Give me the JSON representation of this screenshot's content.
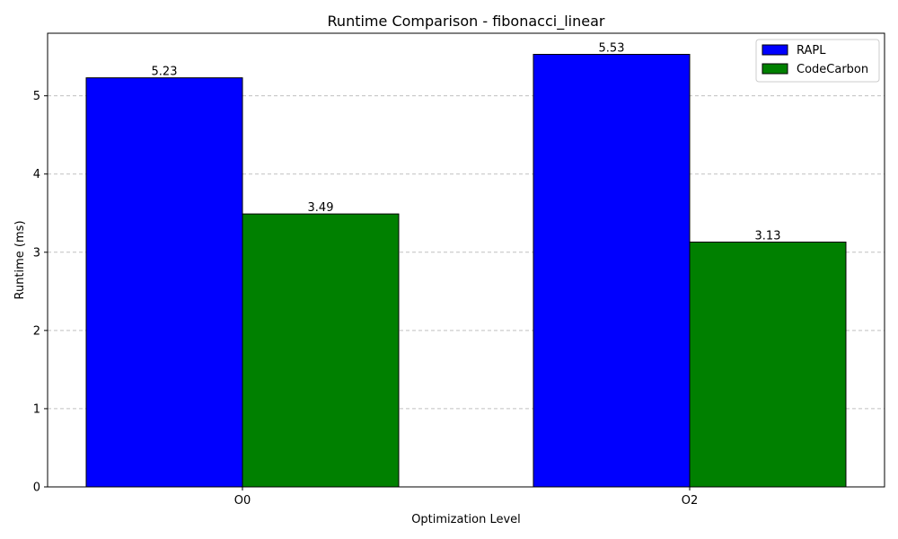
{
  "chart_data": {
    "type": "bar",
    "title": "Runtime Comparison - fibonacci_linear",
    "xlabel": "Optimization Level",
    "ylabel": "Runtime (ms)",
    "categories": [
      "O0",
      "O2"
    ],
    "series": [
      {
        "name": "RAPL",
        "values": [
          5.23,
          5.53
        ],
        "labels": [
          "5.23",
          "5.53"
        ],
        "color": "#0000ff"
      },
      {
        "name": "CodeCarbon",
        "values": [
          3.49,
          3.13
        ],
        "labels": [
          "3.49",
          "3.13"
        ],
        "color": "#008000"
      }
    ],
    "ylim": [
      0,
      5.8
    ],
    "yticks": [
      0,
      1,
      2,
      3,
      4,
      5
    ],
    "ytick_labels": [
      "0",
      "1",
      "2",
      "3",
      "4",
      "5"
    ],
    "grid": {
      "y": true,
      "x": false,
      "style": "dashed",
      "color": "#c0c0c0"
    },
    "legend_position": "top-right",
    "bar_edge_color": "#000000"
  }
}
